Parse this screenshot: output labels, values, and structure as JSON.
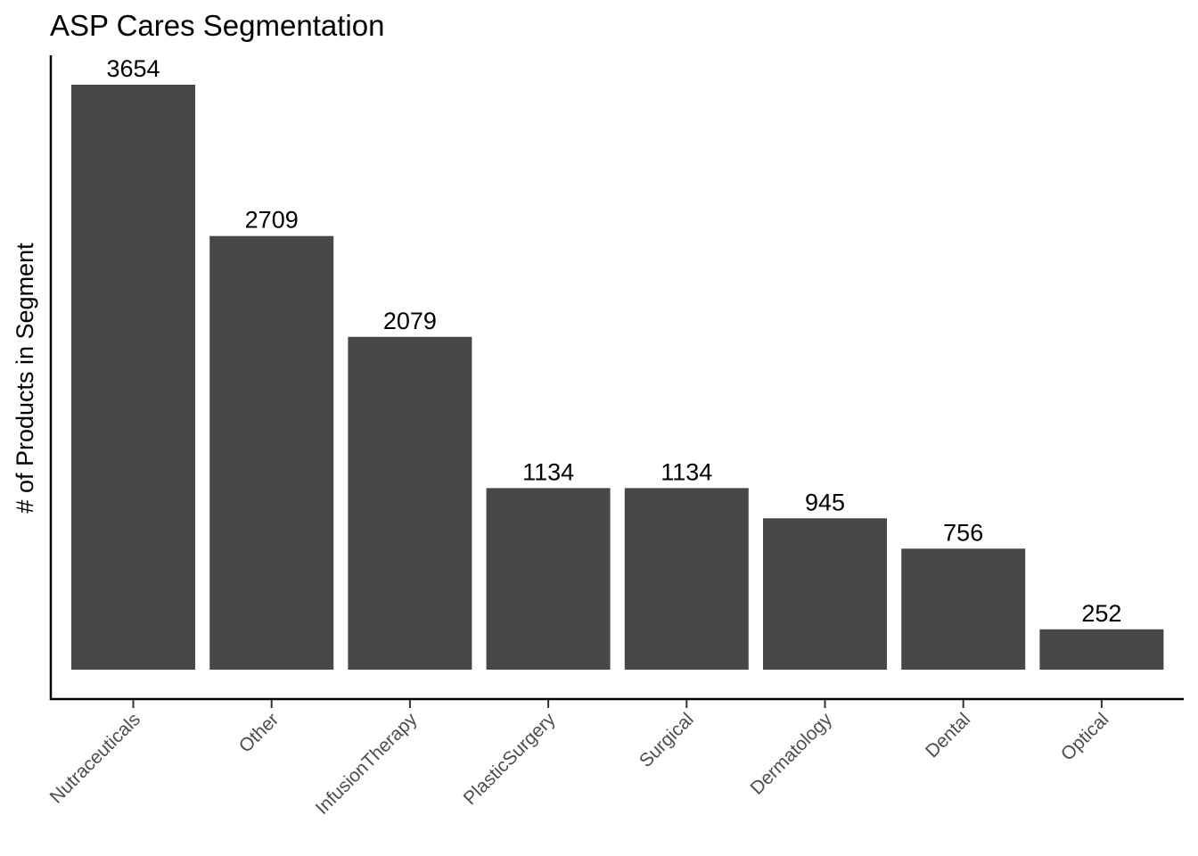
{
  "chart_data": {
    "type": "bar",
    "title": "ASP Cares Segmentation",
    "xlabel": "",
    "ylabel": "# of Products in Segment",
    "categories": [
      "Nutraceuticals",
      "Other",
      "InfusionTherapy",
      "PlasticSurgery",
      "Surgical",
      "Dermatology",
      "Dental",
      "Optical"
    ],
    "values": [
      3654,
      2709,
      2079,
      1134,
      1134,
      945,
      756,
      252
    ],
    "data_labels": [
      "3654",
      "2709",
      "2079",
      "1134",
      "1134",
      "945",
      "756",
      "252"
    ],
    "ylim": [
      0,
      3654
    ],
    "grid": false,
    "legend": "none",
    "y_ticks_shown": false
  },
  "colors": {
    "bar": "#474747",
    "axis": "#000000",
    "tick_label": "#4d4d4d",
    "background": "#ffffff"
  }
}
